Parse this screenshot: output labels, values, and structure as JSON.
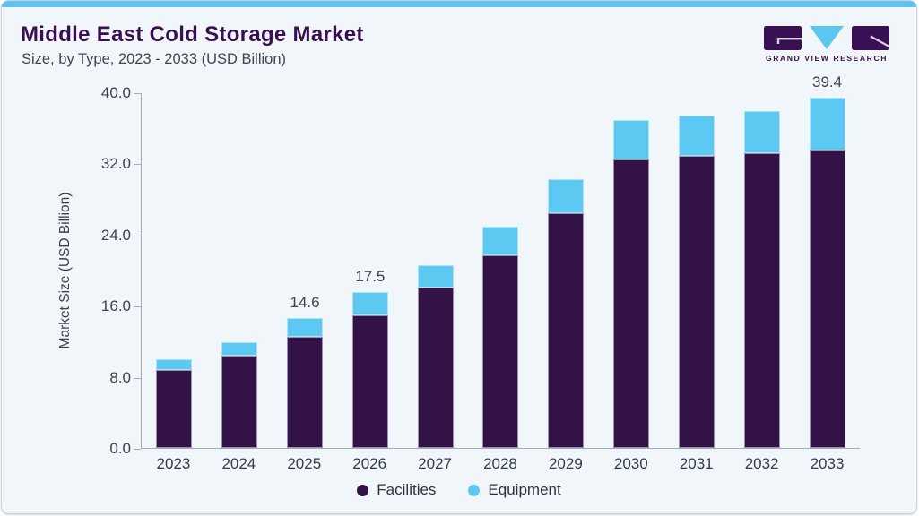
{
  "card": {
    "title": "Middle East Cold Storage Market",
    "subtitle": "Size, by Type, 2023 - 2033 (USD Billion)",
    "accent_strip_color": "#5ec4ef",
    "background_color": "#f1f6fa"
  },
  "logo": {
    "text": "GRAND VIEW RESEARCH",
    "purple": "#3a1055",
    "blue": "#5bc7f0"
  },
  "chart_data": {
    "type": "bar",
    "stacked": true,
    "title": "Middle East Cold Storage Market",
    "subtitle": "Size, by Type, 2023 - 2033 (USD Billion)",
    "categories": [
      "2023",
      "2024",
      "2025",
      "2026",
      "2027",
      "2028",
      "2029",
      "2030",
      "2031",
      "2032",
      "2033"
    ],
    "series": [
      {
        "name": "Facilities",
        "color": "#331247",
        "values": [
          8.8,
          10.4,
          12.5,
          14.9,
          18.0,
          21.7,
          26.4,
          32.4,
          32.8,
          33.1,
          33.5
        ]
      },
      {
        "name": "Equipment",
        "color": "#5bc9f2",
        "values": [
          1.2,
          1.5,
          2.1,
          2.6,
          2.6,
          3.2,
          3.8,
          4.5,
          4.6,
          4.8,
          5.9
        ]
      }
    ],
    "totals": [
      10.0,
      11.9,
      14.6,
      17.5,
      20.6,
      24.9,
      30.2,
      36.9,
      37.4,
      37.9,
      39.4
    ],
    "bar_labels": [
      "",
      "",
      "14.6",
      "17.5",
      "",
      "",
      "",
      "",
      "",
      "",
      "39.4"
    ],
    "ylabel": "Market Size (USD Billion)",
    "yticks": [
      "0.0",
      "8.0",
      "16.0",
      "24.0",
      "32.0",
      "40.0"
    ],
    "ylim": [
      0,
      40
    ],
    "grid": false,
    "legend_position": "bottom"
  }
}
